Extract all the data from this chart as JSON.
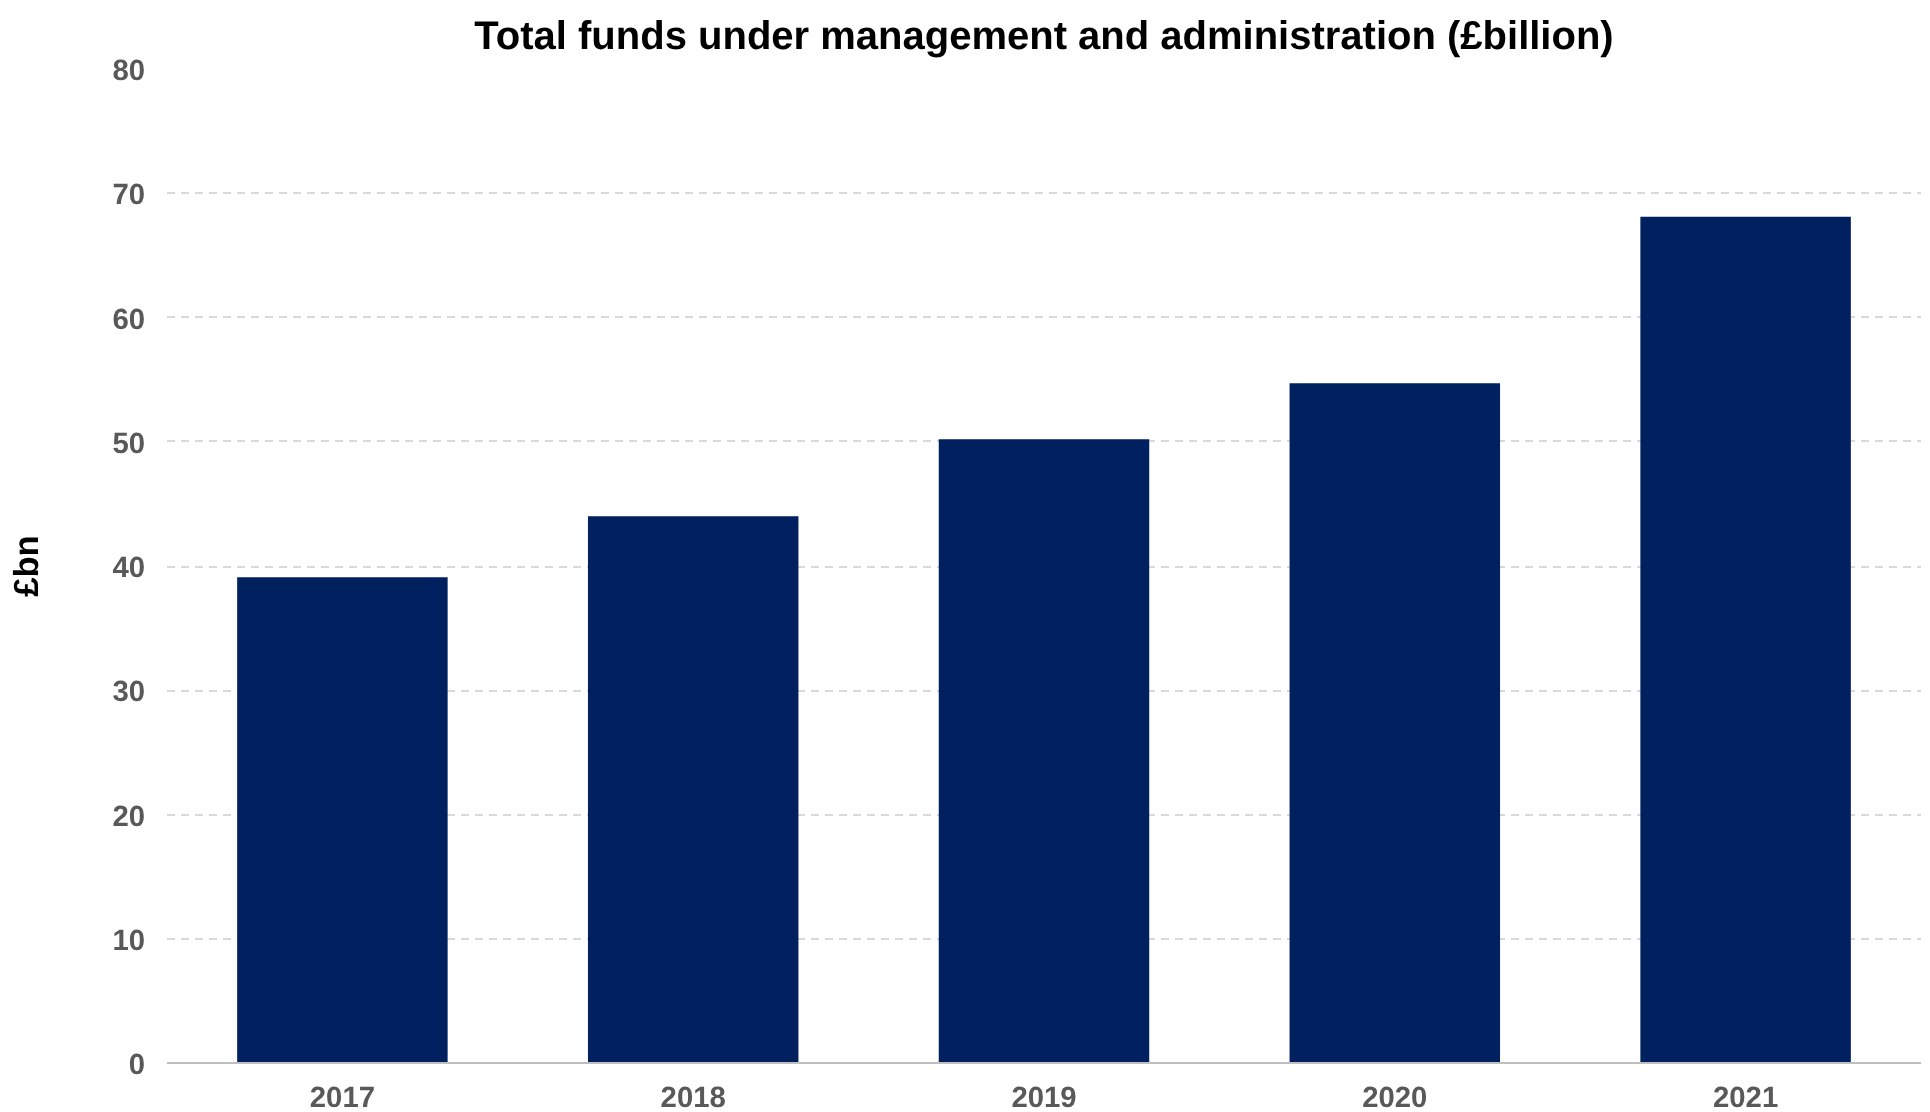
{
  "chart_data": {
    "type": "bar",
    "title": "Total funds under management and administration (£billion)",
    "ylabel": "£bn",
    "categories": [
      "2017",
      "2018",
      "2019",
      "2020",
      "2021"
    ],
    "values": [
      39.1,
      44.0,
      50.2,
      54.7,
      68.1
    ],
    "color": "#002060",
    "ylim": [
      0,
      80
    ],
    "yticks": [
      0,
      10,
      20,
      30,
      40,
      50,
      60,
      70,
      80
    ],
    "grid": "y"
  }
}
